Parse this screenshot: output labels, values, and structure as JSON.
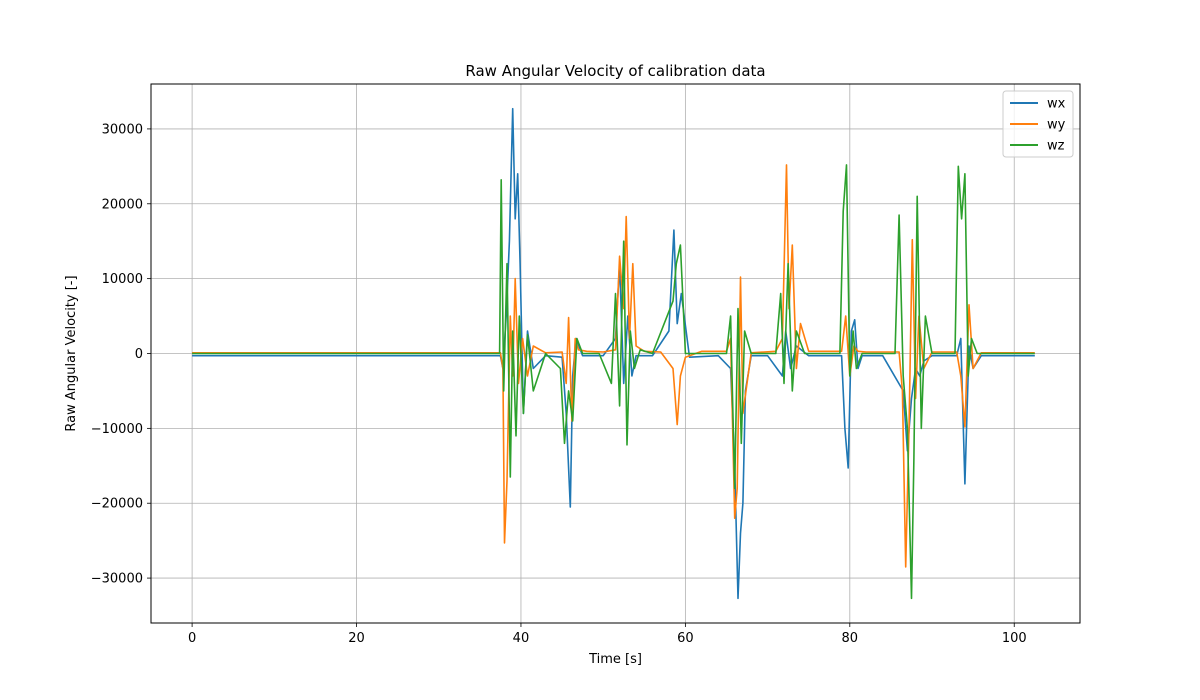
{
  "chart_data": {
    "type": "line",
    "title": "Raw Angular Velocity of calibration data",
    "xlabel": "Time [s]",
    "ylabel": "Raw Angular Velocity [-]",
    "xlim": [
      -5,
      108
    ],
    "ylim": [
      -36000,
      36000
    ],
    "xticks": [
      0,
      20,
      40,
      60,
      80,
      100
    ],
    "yticks": [
      -30000,
      -20000,
      -10000,
      0,
      10000,
      20000,
      30000
    ],
    "xtick_labels": [
      "0",
      "20",
      "40",
      "60",
      "80",
      "100"
    ],
    "ytick_labels": [
      "−30000",
      "−20000",
      "−10000",
      "0",
      "10000",
      "20000",
      "30000"
    ],
    "grid": true,
    "legend_position": "top-right",
    "series": [
      {
        "name": "wx",
        "color": "#1f77b4",
        "x": [
          0,
          37.5,
          37.8,
          38.2,
          38.6,
          39.0,
          39.3,
          39.6,
          39.9,
          40.3,
          40.8,
          41.5,
          43.0,
          45.0,
          45.5,
          46.0,
          46.3,
          46.7,
          47.5,
          50.0,
          51.5,
          52.0,
          52.5,
          53.0,
          53.5,
          54.0,
          56.0,
          58.0,
          58.6,
          59.0,
          59.5,
          60.5,
          64.0,
          65.5,
          66.0,
          66.4,
          66.7,
          67.0,
          67.3,
          68.0,
          70.0,
          71.8,
          72.2,
          72.8,
          73.5,
          75.0,
          79.0,
          79.4,
          79.8,
          80.2,
          80.6,
          81.0,
          81.5,
          84.0,
          86.5,
          87.0,
          87.5,
          88.0,
          88.5,
          89.0,
          90.0,
          93.0,
          93.5,
          94.0,
          94.5,
          95.0,
          96.0,
          102.5
        ],
        "y": [
          -300,
          -300,
          -2000,
          5000,
          15000,
          32700,
          18000,
          24000,
          12000,
          -8000,
          3000,
          -2000,
          -300,
          -500,
          -8000,
          -20500,
          -3000,
          2000,
          -300,
          -300,
          2000,
          12000,
          -4000,
          5000,
          -3000,
          -300,
          -300,
          3000,
          16500,
          4000,
          8000,
          -500,
          -300,
          -2000,
          -15000,
          -32700,
          -24000,
          -20000,
          -5000,
          -300,
          -300,
          -3000,
          3000,
          -2000,
          1000,
          -300,
          -300,
          -10000,
          -15300,
          3000,
          4500,
          -2000,
          -300,
          -300,
          -5000,
          -13000,
          -6000,
          -2000,
          -3000,
          -1000,
          -300,
          -300,
          2000,
          -17400,
          1000,
          -2000,
          -300,
          -300
        ]
      },
      {
        "name": "wy",
        "color": "#ff7f0e",
        "x": [
          0,
          37.5,
          37.8,
          38.0,
          38.3,
          38.7,
          39.0,
          39.3,
          39.7,
          40.2,
          40.8,
          41.5,
          43.0,
          45.0,
          45.5,
          45.8,
          46.2,
          46.6,
          47.0,
          48.0,
          50.0,
          51.5,
          52.0,
          52.5,
          52.8,
          53.2,
          53.6,
          54.0,
          55.0,
          57.0,
          58.5,
          59.0,
          59.4,
          60.0,
          62.0,
          65.0,
          65.5,
          66.0,
          66.3,
          66.7,
          67.0,
          68.0,
          71.0,
          71.8,
          72.3,
          72.6,
          73.0,
          73.5,
          74.0,
          75.0,
          79.0,
          79.5,
          80.0,
          80.5,
          81.0,
          82.0,
          86.0,
          86.4,
          86.8,
          87.2,
          87.6,
          88.0,
          88.4,
          89.0,
          90.0,
          93.0,
          93.5,
          94.0,
          94.5,
          95.0,
          96.0,
          102.5
        ],
        "y": [
          100,
          100,
          -2000,
          -25300,
          -17000,
          5000,
          -3000,
          10000,
          -4000,
          2000,
          -3000,
          1000,
          100,
          200,
          -4000,
          4800,
          -9000,
          2000,
          500,
          300,
          200,
          500,
          13000,
          6000,
          18300,
          2000,
          12000,
          1000,
          300,
          200,
          -2000,
          -9500,
          -3000,
          -500,
          300,
          300,
          2000,
          -22000,
          -18000,
          10200,
          -8000,
          100,
          300,
          2000,
          25200,
          6000,
          14500,
          -2000,
          4000,
          300,
          300,
          5000,
          -3000,
          1000,
          300,
          200,
          200,
          -5000,
          -28500,
          -10000,
          15200,
          -6000,
          5000,
          -2000,
          200,
          200,
          -3000,
          -9800,
          6500,
          -2000,
          100,
          100
        ]
      },
      {
        "name": "wz",
        "color": "#2ca02c",
        "x": [
          0,
          37.4,
          37.6,
          37.9,
          38.3,
          38.7,
          39.0,
          39.4,
          39.8,
          40.3,
          40.8,
          41.5,
          43.0,
          44.8,
          45.3,
          45.8,
          46.3,
          46.8,
          47.5,
          49.5,
          51.0,
          51.5,
          52.0,
          52.5,
          52.9,
          53.3,
          53.8,
          54.5,
          56.0,
          58.5,
          58.9,
          59.4,
          60.0,
          62.0,
          65.0,
          65.5,
          66.0,
          66.4,
          66.8,
          67.2,
          68.0,
          71.0,
          71.6,
          72.0,
          72.5,
          73.0,
          73.5,
          74.5,
          78.8,
          79.2,
          79.6,
          80.0,
          80.4,
          80.8,
          81.5,
          85.5,
          86.0,
          86.5,
          87.0,
          87.5,
          87.8,
          88.2,
          88.7,
          89.2,
          90.0,
          92.8,
          93.2,
          93.6,
          94.0,
          94.4,
          94.8,
          95.5,
          102.5
        ],
        "y": [
          0,
          0,
          23200,
          -5000,
          12000,
          -16500,
          3000,
          -11000,
          5000,
          -8000,
          2500,
          -5000,
          0,
          -2000,
          -12000,
          -5000,
          -9000,
          2000,
          0,
          0,
          -4000,
          8000,
          -7000,
          15000,
          -12200,
          3000,
          -2000,
          500,
          0,
          7000,
          12000,
          14500,
          0,
          0,
          0,
          5000,
          -18000,
          6000,
          -12000,
          3000,
          0,
          0,
          8000,
          -4000,
          12000,
          -5000,
          3000,
          0,
          0,
          19000,
          25200,
          -3000,
          3000,
          -2000,
          0,
          0,
          18500,
          -3000,
          -10000,
          -32700,
          -14000,
          21000,
          -10000,
          5000,
          0,
          0,
          25000,
          18000,
          24000,
          -3000,
          2000,
          0,
          0
        ]
      }
    ]
  }
}
